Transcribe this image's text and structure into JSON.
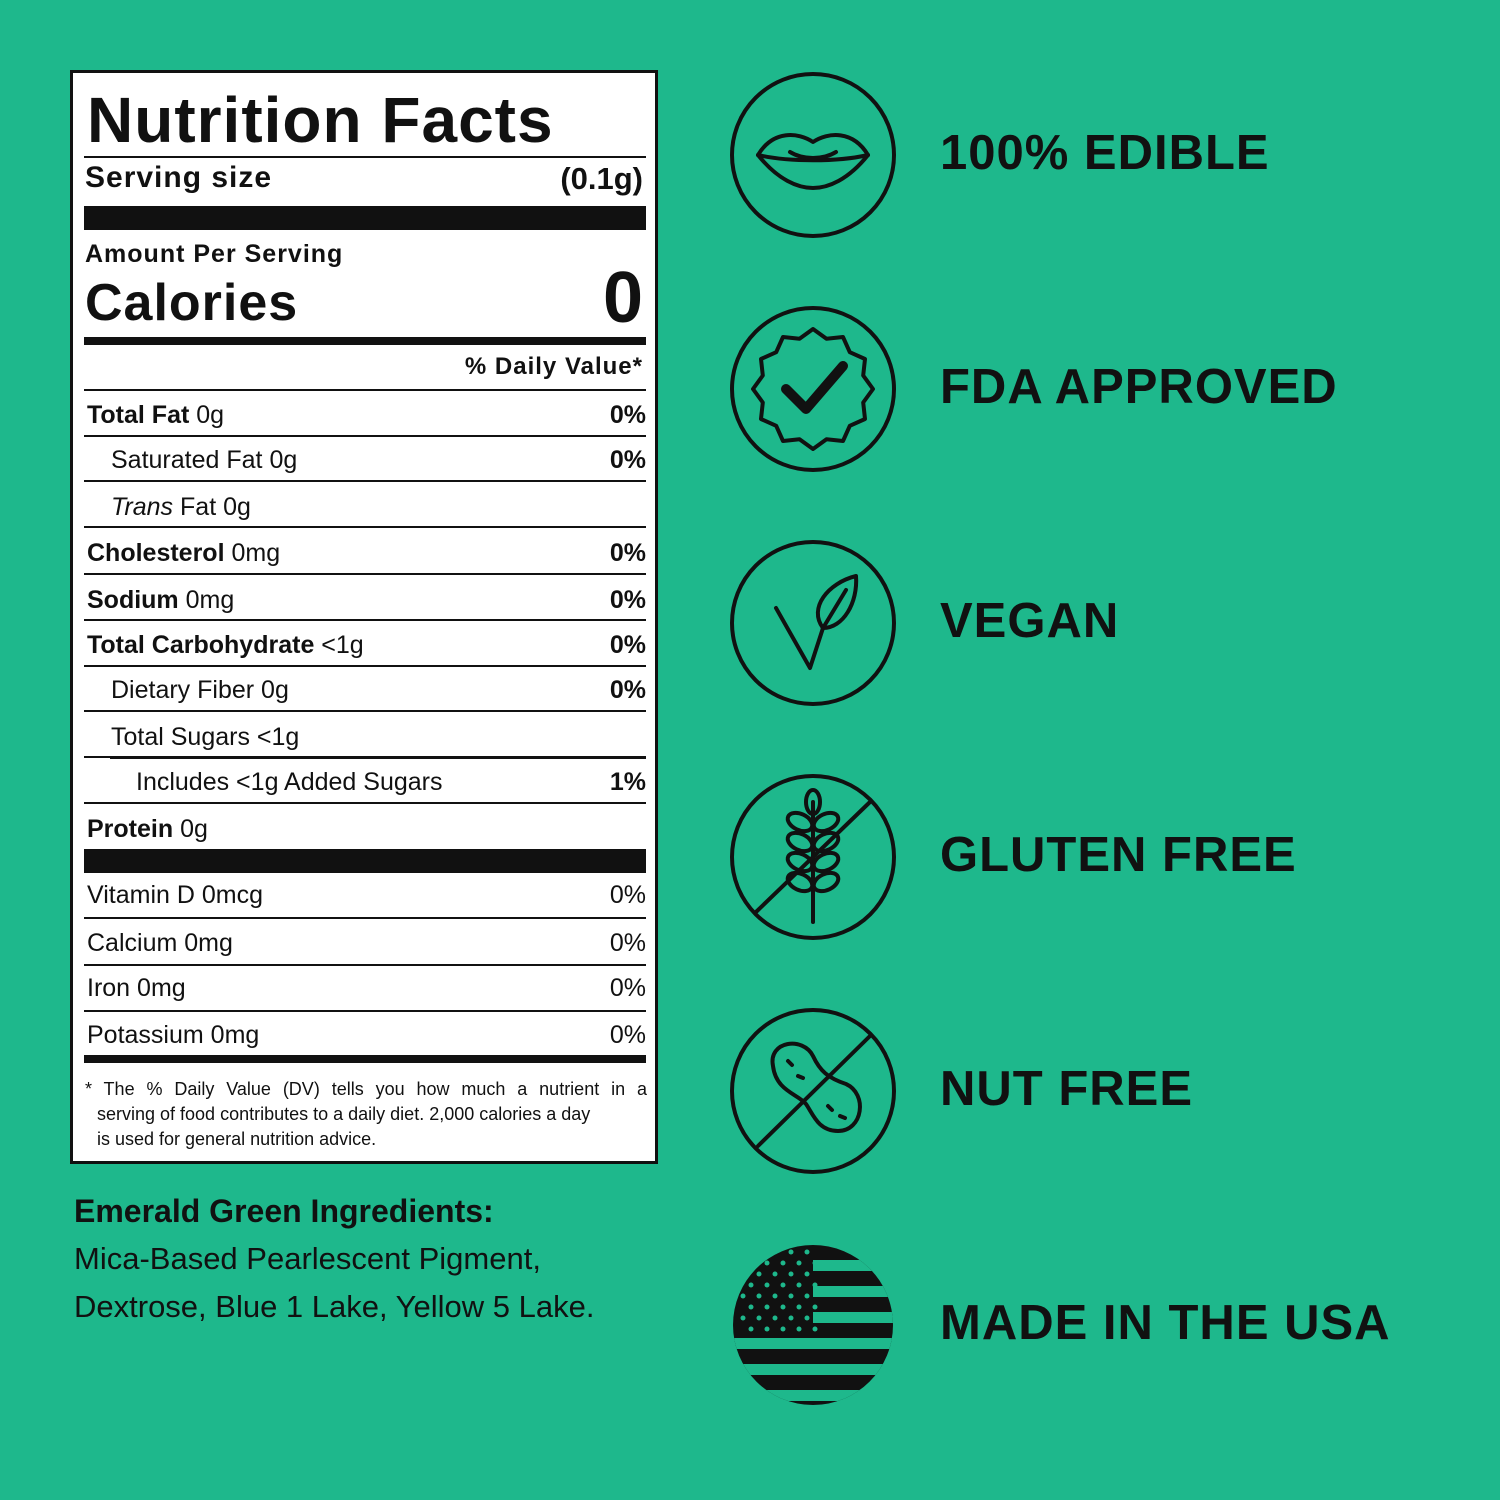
{
  "colors": {
    "background": "#1eb88c",
    "ink": "#111111",
    "panel": "#ffffff"
  },
  "nutrition": {
    "title": "Nutrition Facts",
    "serving_label": "Serving size",
    "serving_value": "(0.1g)",
    "amount_per_serving": "Amount Per Serving",
    "calories_label": "Calories",
    "calories_value": "0",
    "dv_header": "% Daily Value*",
    "rows": [
      {
        "name": "Total Fat",
        "amount": "0g",
        "dv": "0%",
        "style": "bold"
      },
      {
        "name": "Saturated Fat",
        "amount": "0g",
        "dv": "0%",
        "style": "indent"
      },
      {
        "name": "Trans",
        "name_suffix": "Fat",
        "amount": "0g",
        "dv": "",
        "style": "indent-italic"
      },
      {
        "name": "Cholesterol",
        "amount": "0mg",
        "dv": "0%",
        "style": "bold"
      },
      {
        "name": "Sodium",
        "amount": "0mg",
        "dv": "0%",
        "style": "bold"
      },
      {
        "name": "Total Carbohydrate",
        "amount": "<1g",
        "dv": "0%",
        "style": "bold"
      },
      {
        "name": "Dietary Fiber",
        "amount": "0g",
        "dv": "0%",
        "style": "indent"
      },
      {
        "name": "Total Sugars",
        "amount": "<1g",
        "dv": "",
        "style": "indent"
      },
      {
        "name": "Includes <1g Added Sugars",
        "amount": "",
        "dv": "1%",
        "style": "indent2"
      },
      {
        "name": "Protein",
        "amount": "0g",
        "dv": "",
        "style": "bold"
      }
    ],
    "vitamins": [
      {
        "name": "Vitamin D",
        "amount": "0mcg",
        "dv": "0%"
      },
      {
        "name": "Calcium",
        "amount": "0mg",
        "dv": "0%"
      },
      {
        "name": "Iron",
        "amount": "0mg",
        "dv": "0%"
      },
      {
        "name": "Potassium",
        "amount": "0mg",
        "dv": "0%"
      }
    ],
    "footnote": [
      "* The % Daily Value (DV) tells you how much a nutrient in a",
      "serving of food contributes to a daily diet. 2,000 calories a day",
      "is used for general nutrition advice."
    ]
  },
  "ingredients": {
    "title": "Emerald Green Ingredients:",
    "lines": [
      "Mica-Based Pearlescent Pigment,",
      "Dextrose, Blue 1 Lake, Yellow 5 Lake."
    ]
  },
  "badges": [
    {
      "icon": "lips-icon",
      "label": "100% EDIBLE"
    },
    {
      "icon": "check-seal-icon",
      "label": "FDA APPROVED"
    },
    {
      "icon": "vegan-leaf-icon",
      "label": "VEGAN"
    },
    {
      "icon": "no-wheat-icon",
      "label": "GLUTEN FREE"
    },
    {
      "icon": "no-peanut-icon",
      "label": "NUT FREE"
    },
    {
      "icon": "us-flag-icon",
      "label": "MADE IN THE USA"
    }
  ]
}
